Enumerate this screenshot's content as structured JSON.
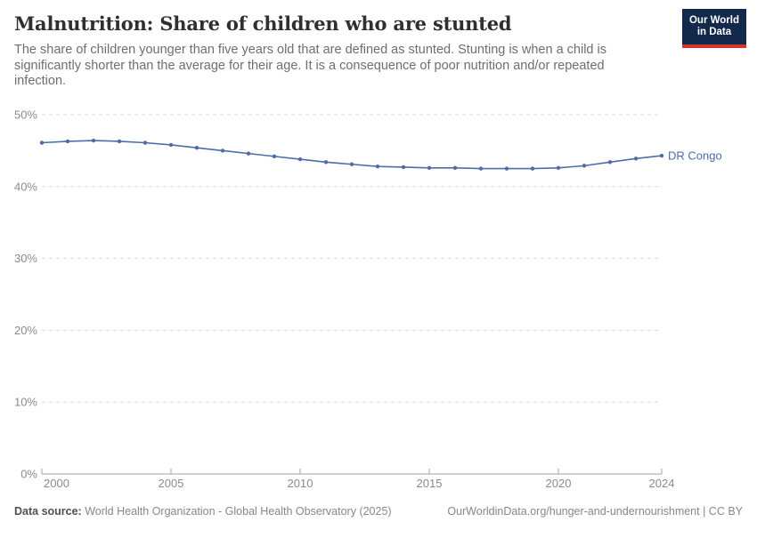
{
  "header": {
    "title": "Malnutrition: Share of children who are stunted",
    "subtitle": "The share of children younger than five years old that are defined as stunted. Stunting is when a child is significantly shorter than the average for their age. It is a consequence of poor nutrition and/or repeated infection.",
    "logo": {
      "line1": "Our World",
      "line2": "in Data",
      "bg_color": "#12294b",
      "accent_color": "#d7342b"
    }
  },
  "chart_data": {
    "type": "line",
    "title": "Malnutrition: Share of children who are stunted",
    "xlabel": "",
    "ylabel": "",
    "xlim": [
      2000,
      2024
    ],
    "ylim": [
      0,
      50
    ],
    "x_ticks": [
      2000,
      2005,
      2010,
      2015,
      2020,
      2024
    ],
    "y_ticks": [
      0,
      10,
      20,
      30,
      40,
      50
    ],
    "y_tick_format": "percent",
    "grid": "horizontal-dashed",
    "legend_position": "end-of-line-label",
    "line_color": "#4c6da8",
    "x": [
      2000,
      2001,
      2002,
      2003,
      2004,
      2005,
      2006,
      2007,
      2008,
      2009,
      2010,
      2011,
      2012,
      2013,
      2014,
      2015,
      2016,
      2017,
      2018,
      2019,
      2020,
      2021,
      2022,
      2023,
      2024
    ],
    "series": [
      {
        "name": "DR Congo",
        "values": [
          46.1,
          46.3,
          46.4,
          46.3,
          46.1,
          45.8,
          45.4,
          45.0,
          44.6,
          44.2,
          43.8,
          43.4,
          43.1,
          42.8,
          42.7,
          42.6,
          42.6,
          42.5,
          42.5,
          42.5,
          42.6,
          42.9,
          43.4,
          43.9,
          44.3
        ]
      }
    ]
  },
  "footer": {
    "datasource_label": "Data source:",
    "datasource_text": " World Health Organization - Global Health Observatory (2025)",
    "link_text": "OurWorldinData.org/hunger-and-undernourishment | CC BY"
  }
}
